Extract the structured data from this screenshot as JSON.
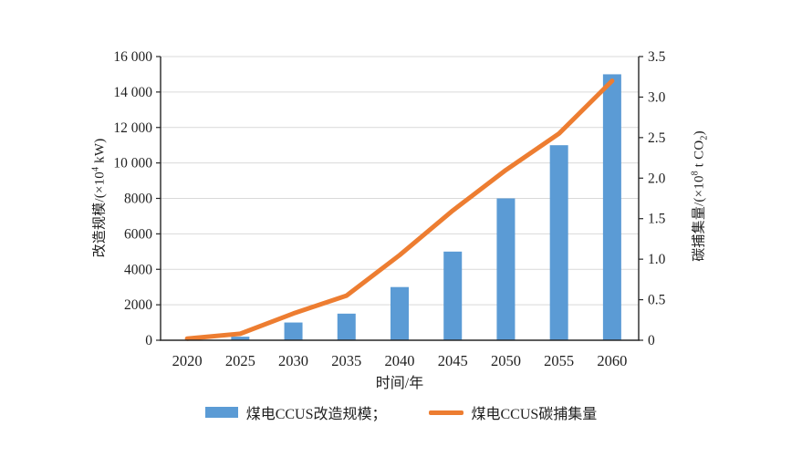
{
  "chart_data": {
    "type": "bar+line",
    "categories": [
      "2020",
      "2025",
      "2030",
      "2035",
      "2040",
      "2045",
      "2050",
      "2055",
      "2060"
    ],
    "series": [
      {
        "name": "煤电CCUS改造规模",
        "type": "bar",
        "axis": "left",
        "color": "#5b9bd5",
        "values": [
          0,
          200,
          1000,
          1500,
          3000,
          5000,
          8000,
          11000,
          15000
        ]
      },
      {
        "name": "煤电CCUS碳捕集量",
        "type": "line",
        "axis": "right",
        "color": "#ed7d31",
        "values": [
          0.02,
          0.08,
          0.33,
          0.55,
          1.05,
          1.6,
          2.1,
          2.55,
          3.2
        ]
      }
    ],
    "left_axis": {
      "title": "改造规模/(×10⁴ kW)",
      "title_parts": {
        "pre": "改造规模/(×10",
        "sup": "4",
        "post": " kW)"
      },
      "min": 0,
      "max": 16000,
      "step": 2000,
      "tick_labels": [
        "0",
        "2000",
        "4000",
        "6000",
        "8000",
        "10 000",
        "12 000",
        "14 000",
        "16 000"
      ]
    },
    "right_axis": {
      "title": "碳捕集量/(×10⁸ t CO₂)",
      "title_parts": {
        "pre": "碳捕集量/(×10",
        "sup": "8",
        "mid": " t CO",
        "sub": "2",
        "post": ")"
      },
      "min": 0,
      "max": 3.5,
      "step": 0.5,
      "tick_labels": [
        "0",
        "0.5",
        "1.0",
        "1.5",
        "2.0",
        "2.5",
        "3.0",
        "3.5"
      ]
    },
    "x_axis": {
      "title": "时间/年"
    },
    "grid": {
      "show": true,
      "color": "#d9d9d9",
      "direction": "horizontal"
    },
    "legend": {
      "position": "bottom",
      "items": [
        {
          "label": "煤电CCUS改造规模；",
          "swatch": "bar",
          "color": "#5b9bd5"
        },
        {
          "label": "煤电CCUS碳捕集量",
          "swatch": "line",
          "color": "#ed7d31"
        }
      ]
    },
    "colors": {
      "axis": "#262626",
      "tick_text": "#1f1f1f",
      "background": "#ffffff"
    }
  }
}
